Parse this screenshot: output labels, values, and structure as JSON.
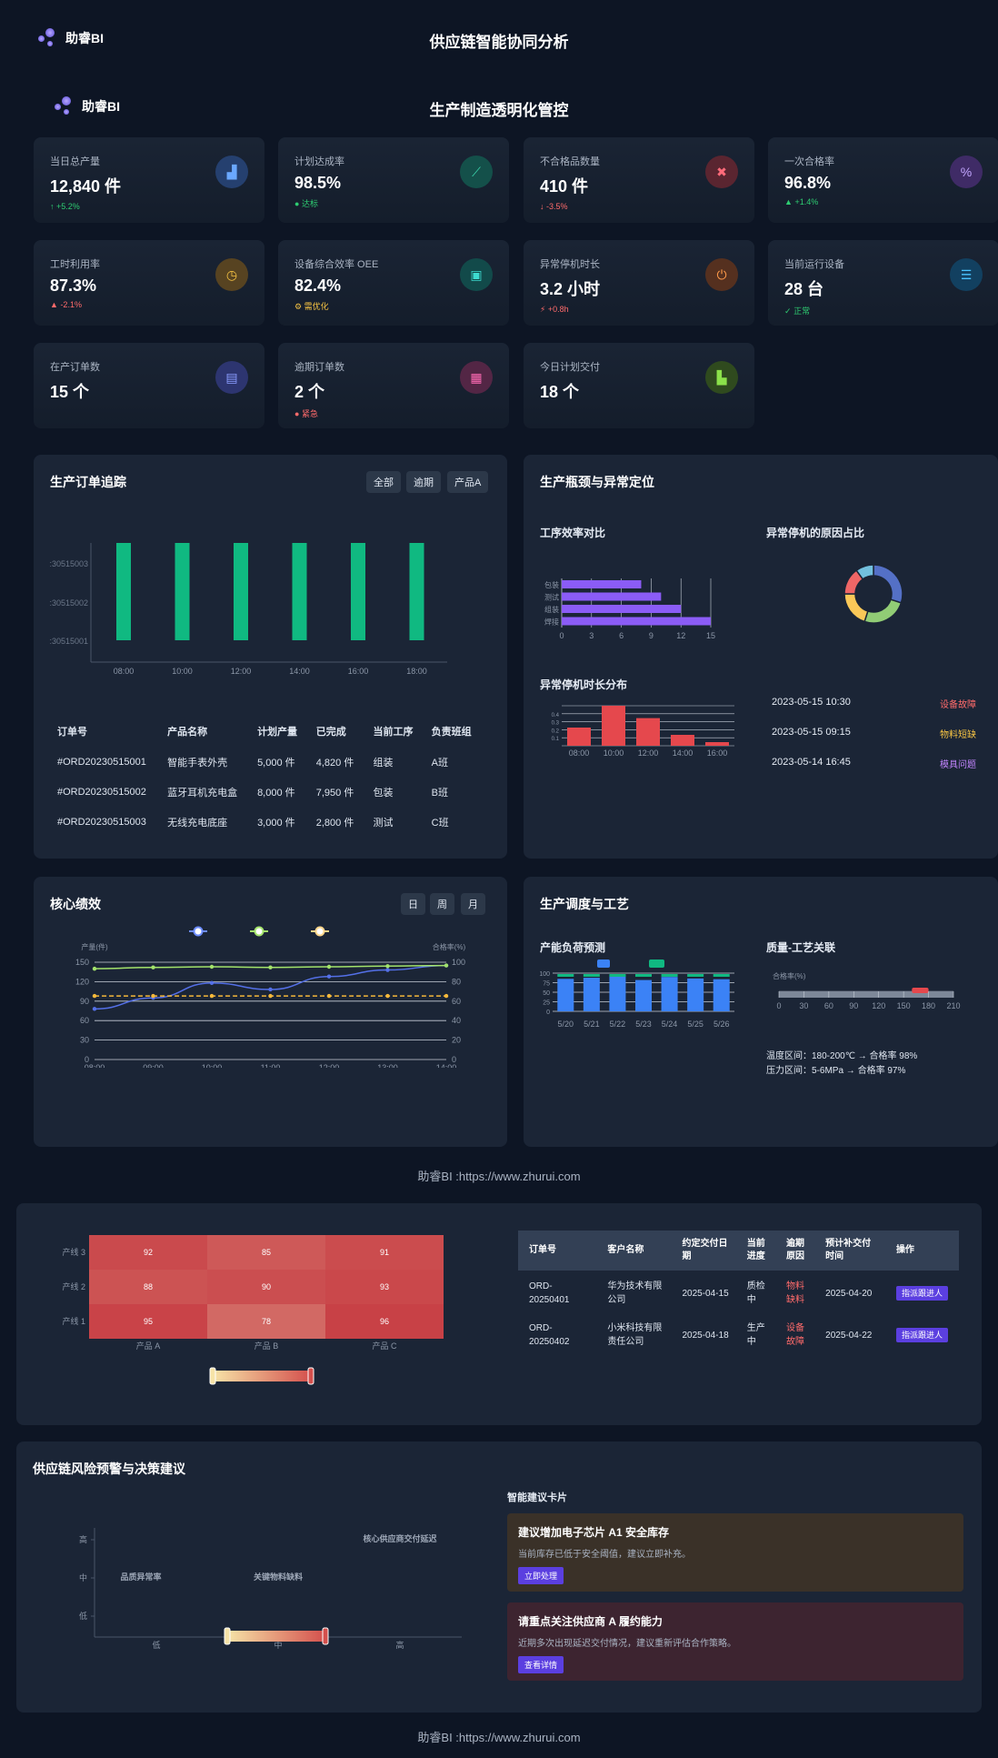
{
  "header": {
    "logo": "助睿BI",
    "title": "供应链智能协同分析"
  },
  "section": {
    "logo": "助睿BI",
    "title": "生产制造透明化管控"
  },
  "kpis": [
    {
      "label": "当日总产量",
      "value": "12,840 件",
      "sub": "+5.2%",
      "sub_icon": "↑",
      "sub_color": "#2ecc71",
      "icon": "factory-icon",
      "icon_glyph": "▟",
      "icon_bg": "#25406f",
      "icon_color": "#6aa8ff"
    },
    {
      "label": "计划达成率",
      "value": "98.5%",
      "sub": "达标",
      "sub_icon": "●",
      "sub_color": "#2ecc71",
      "icon": "chart-line-icon",
      "icon_glyph": "⟋",
      "icon_bg": "#14504a",
      "icon_color": "#3ddbb0"
    },
    {
      "label": "不合格品数量",
      "value": "410 件",
      "sub": "-3.5%",
      "sub_icon": "↓",
      "sub_color": "#ff6b6b",
      "icon": "close-circle-icon",
      "icon_glyph": "✖",
      "icon_bg": "#5a2530",
      "icon_color": "#ff6b7a"
    },
    {
      "label": "一次合格率",
      "value": "96.8%",
      "sub": "+1.4%",
      "sub_icon": "▲",
      "sub_color": "#2ecc71",
      "icon": "percent-icon",
      "icon_glyph": "%",
      "icon_bg": "#3f2b66",
      "icon_color": "#c3a6ff"
    },
    {
      "label": "工时利用率",
      "value": "87.3%",
      "sub": "-2.1%",
      "sub_icon": "▲",
      "sub_color": "#ff6b6b",
      "icon": "clock-icon",
      "icon_glyph": "◷",
      "icon_bg": "#574321",
      "icon_color": "#f6c343"
    },
    {
      "label": "设备综合效率 OEE",
      "value": "82.4%",
      "sub": "需优化",
      "sub_icon": "⚙",
      "sub_color": "#f6c343",
      "icon": "chip-icon",
      "icon_glyph": "▣",
      "icon_bg": "#124a4a",
      "icon_color": "#3ddbd0"
    },
    {
      "label": "异常停机时长",
      "value": "3.2 小时",
      "sub": "+0.8h",
      "sub_icon": "⚡",
      "sub_color": "#ff6b6b",
      "icon": "power-icon",
      "icon_glyph": "⏻",
      "icon_bg": "#55301f",
      "icon_color": "#ff9a4a"
    },
    {
      "label": "当前运行设备",
      "value": "28 台",
      "sub": "正常",
      "sub_icon": "✓",
      "sub_color": "#2ecc71",
      "icon": "server-icon",
      "icon_glyph": "☰",
      "icon_bg": "#124060",
      "icon_color": "#4ac3ff"
    },
    {
      "label": "在产订单数",
      "value": "15 个",
      "sub": "",
      "sub_icon": "",
      "sub_color": "#2ecc71",
      "icon": "document-icon",
      "icon_glyph": "▤",
      "icon_bg": "#2d3570",
      "icon_color": "#8a9cff"
    },
    {
      "label": "逾期订单数",
      "value": "2 个",
      "sub": "紧急",
      "sub_icon": "●",
      "sub_color": "#ff6b6b",
      "icon": "calendar-x-icon",
      "icon_glyph": "▦",
      "icon_bg": "#532645",
      "icon_color": "#ff6bb5"
    },
    {
      "label": "今日计划交付",
      "value": "18 个",
      "sub": "",
      "sub_icon": "",
      "sub_color": "#2ecc71",
      "icon": "truck-icon",
      "icon_glyph": "▙",
      "icon_bg": "#2f4a1e",
      "icon_color": "#8be04a"
    }
  ],
  "order_tracking": {
    "title": "生产订单追踪",
    "filters": [
      "全部",
      "逾期",
      "产品A"
    ],
    "chart_data": {
      "type": "bar",
      "categories": [
        "08:00",
        "10:00",
        "12:00",
        "14:00",
        "16:00",
        "18:00"
      ],
      "y_ticks": [
        ":30515001",
        ":30515002",
        ":30515003"
      ],
      "values": [
        1,
        1,
        1,
        1,
        1,
        1
      ],
      "color": "#10b981"
    },
    "table": {
      "headers": [
        "订单号",
        "产品名称",
        "计划产量",
        "已完成",
        "当前工序",
        "负责班组"
      ],
      "rows": [
        [
          "#ORD20230515001",
          "智能手表外壳",
          "5,000 件",
          "4,820 件",
          "组装",
          "A班"
        ],
        [
          "#ORD20230515002",
          "蓝牙耳机充电盒",
          "8,000 件",
          "7,950 件",
          "包装",
          "B班"
        ],
        [
          "#ORD20230515003",
          "无线充电底座",
          "3,000 件",
          "2,800 件",
          "测试",
          "C班"
        ]
      ]
    }
  },
  "bottleneck": {
    "title": "生产瓶颈与异常定位",
    "efficiency_title": "工序效率对比",
    "efficiency_chart": {
      "type": "bar",
      "categories": [
        "包装",
        "测试",
        "组装",
        "焊接"
      ],
      "values": [
        8,
        10,
        12,
        15
      ],
      "x_ticks": [
        "0",
        "3",
        "6",
        "9",
        "12",
        "15"
      ],
      "xlim": [
        0,
        15
      ],
      "color": "#8b5cf6"
    },
    "stop_reason_title": "异常停机的原因占比",
    "stop_reason_chart": {
      "type": "pie",
      "values": [
        30,
        25,
        20,
        15,
        10
      ],
      "colors": [
        "#5470c6",
        "#91cc75",
        "#fac858",
        "#ee6666",
        "#73c0de"
      ]
    },
    "duration_title": "异常停机时长分布",
    "duration_chart": {
      "type": "bar",
      "categories": [
        "08:00",
        "10:00",
        "12:00",
        "14:00",
        "16:00"
      ],
      "values": [
        0.25,
        0.55,
        0.38,
        0.15,
        0.05
      ],
      "y_ticks": [
        "0.1",
        "0.2",
        "0.3",
        "0.4"
      ],
      "ylim": [
        0,
        0.55
      ],
      "color": "#e5484d"
    },
    "events": [
      {
        "time": "2023-05-15 10:30",
        "type": "设备故障",
        "color": "#ff6b6b"
      },
      {
        "time": "2023-05-15 09:15",
        "type": "物料短缺",
        "color": "#f6c343"
      },
      {
        "time": "2023-05-14 16:45",
        "type": "模具问题",
        "color": "#c084fc"
      }
    ]
  },
  "core_perf": {
    "title": "核心绩效",
    "tabs": [
      "日",
      "周",
      "月"
    ],
    "legend_colors": [
      "#6c8cff",
      "#a3e36b",
      "#ffd58a"
    ],
    "chart_data": {
      "type": "line",
      "x": [
        "08:00",
        "09:00",
        "10:00",
        "11:00",
        "12:00",
        "13:00",
        "14:00"
      ],
      "ylabel": "产量(件)",
      "y2label": "合格率(%)",
      "y_ticks": [
        "0",
        "30",
        "60",
        "90",
        "120",
        "150"
      ],
      "y2_ticks": [
        "0",
        "20",
        "40",
        "60",
        "80",
        "100"
      ],
      "ylim": [
        0,
        150
      ],
      "series": [
        {
          "values": [
            78,
            95,
            118,
            108,
            128,
            138,
            145
          ],
          "color": "#5470e8"
        },
        {
          "values": [
            140,
            142,
            143,
            142,
            143,
            144,
            145
          ],
          "color": "#a3e36b"
        },
        {
          "values": [
            98,
            98,
            98,
            98,
            98,
            98,
            98
          ],
          "color": "#f6b93b",
          "dashed": true
        }
      ]
    }
  },
  "schedule": {
    "title": "生产调度与工艺",
    "load_title": "产能负荷预测",
    "load_chart": {
      "type": "bar",
      "categories": [
        "5/20",
        "5/21",
        "5/22",
        "5/23",
        "5/24",
        "5/25",
        "5/26"
      ],
      "y_ticks": [
        "0",
        "25",
        "50",
        "75",
        "100"
      ],
      "ylim": [
        0,
        100
      ],
      "series": [
        {
          "values": [
            85,
            88,
            95,
            82,
            90,
            86,
            84
          ],
          "color": "#3b82f6"
        },
        {
          "values": [
            15,
            12,
            5,
            18,
            10,
            14,
            16
          ],
          "color": "#10b981"
        }
      ]
    },
    "quality_title": "质量-工艺关联",
    "quality_chart": {
      "type": "bar",
      "ylabel": "合格率(%)",
      "x_ticks": [
        "0",
        "30",
        "60",
        "90",
        "120",
        "150",
        "180",
        "210"
      ],
      "xlim": [
        0,
        210
      ],
      "highlight": [
        160,
        180
      ]
    },
    "notes": [
      "温度区间：180-200℃ → 合格率 98%",
      "压力区间：5-6MPa → 合格率 97%"
    ]
  },
  "footer1": "助睿BI :https://www.zhurui.com",
  "heatmap": {
    "rows": [
      "产线 3",
      "产线 2",
      "产线 1"
    ],
    "cols": [
      "产品 A",
      "产品 B",
      "产品 C"
    ],
    "values": [
      [
        92,
        85,
        91
      ],
      [
        88,
        90,
        93
      ],
      [
        95,
        78,
        96
      ]
    ]
  },
  "order_table": {
    "headers": [
      "订单号",
      "客户名称",
      "约定交付日期",
      "当前进度",
      "逾期原因",
      "预计补交付时间",
      "操作"
    ],
    "rows": [
      {
        "id": "ORD-20250401",
        "customer": "华为技术有限公司",
        "date": "2025-04-15",
        "progress": "质检中",
        "reason": "物料缺料",
        "eta": "2025-04-20",
        "action": "指派跟进人"
      },
      {
        "id": "ORD-20250402",
        "customer": "小米科技有限责任公司",
        "date": "2025-04-18",
        "progress": "生产中",
        "reason": "设备故障",
        "eta": "2025-04-22",
        "action": "指派跟进人"
      }
    ]
  },
  "risk": {
    "title": "供应链风险预警与决策建议",
    "y_labels": [
      "高",
      "中",
      "低"
    ],
    "x_labels": [
      "低",
      "中",
      "高"
    ],
    "points": [
      "品质异常率",
      "关键物料缺料",
      "核心供应商交付延迟"
    ],
    "cards_title": "智能建议卡片",
    "cards": [
      {
        "title": "建议增加电子芯片 A1 安全库存",
        "desc": "当前库存已低于安全阈值，建议立即补充。",
        "button": "立即处理",
        "bg": "#3a3128"
      },
      {
        "title": "请重点关注供应商 A 履约能力",
        "desc": "近期多次出现延迟交付情况，建议重新评估合作策略。",
        "button": "查看详情",
        "bg": "#3d2430"
      }
    ]
  },
  "footer2": "助睿BI :https://www.zhurui.com"
}
